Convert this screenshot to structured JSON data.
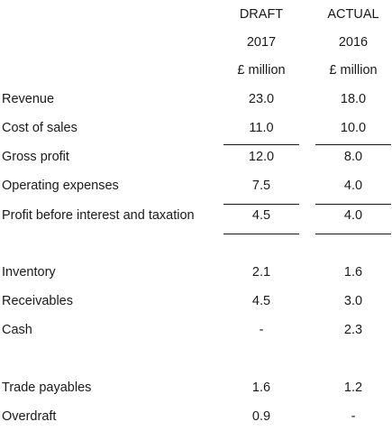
{
  "header": {
    "col1": [
      "DRAFT",
      "2017",
      "£ million"
    ],
    "col2": [
      "ACTUAL",
      "2016",
      "£ million"
    ]
  },
  "income": [
    {
      "label": "Revenue",
      "draft": "23.0",
      "actual": "18.0"
    },
    {
      "label": "Cost of sales",
      "draft": "11.0",
      "actual": "10.0"
    },
    {
      "label": "Gross profit",
      "draft": "12.0",
      "actual": "8.0"
    },
    {
      "label": "Operating expenses",
      "draft": "7.5",
      "actual": "4.0"
    },
    {
      "label": "Profit before interest and taxation",
      "draft": "4.5",
      "actual": "4.0"
    }
  ],
  "assets": [
    {
      "label": "Inventory",
      "draft": "2.1",
      "actual": "1.6"
    },
    {
      "label": "Receivables",
      "draft": "4.5",
      "actual": "3.0"
    },
    {
      "label": "Cash",
      "draft": "-",
      "actual": "2.3"
    }
  ],
  "liabilities": [
    {
      "label": "Trade payables",
      "draft": "1.6",
      "actual": "1.2"
    },
    {
      "label": "Overdraft",
      "draft": "0.9",
      "actual": "-"
    }
  ]
}
